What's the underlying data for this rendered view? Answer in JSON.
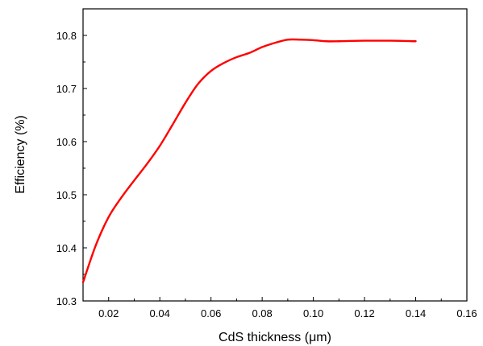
{
  "chart_data": {
    "type": "line",
    "title": "",
    "xlabel": "CdS thickness (μm)",
    "ylabel": "Efficiency (%)",
    "xlim": [
      0.01,
      0.16
    ],
    "ylim": [
      10.3,
      10.85
    ],
    "x_ticks": [
      "0.02",
      "0.04",
      "0.06",
      "0.08",
      "0.10",
      "0.12",
      "0.14",
      "0.16"
    ],
    "y_ticks": [
      "10.3",
      "10.4",
      "10.5",
      "10.6",
      "10.7",
      "10.8"
    ],
    "grid": false,
    "legend": "none",
    "series": [
      {
        "color": "#ff0000",
        "x": [
          0.01,
          0.015,
          0.02,
          0.025,
          0.03,
          0.035,
          0.04,
          0.045,
          0.05,
          0.055,
          0.06,
          0.065,
          0.07,
          0.075,
          0.08,
          0.085,
          0.09,
          0.095,
          0.1,
          0.105,
          0.11,
          0.12,
          0.13,
          0.14
        ],
        "y": [
          10.335,
          10.405,
          10.458,
          10.495,
          10.527,
          10.558,
          10.592,
          10.632,
          10.673,
          10.709,
          10.733,
          10.748,
          10.759,
          10.767,
          10.778,
          10.786,
          10.792,
          10.792,
          10.791,
          10.789,
          10.789,
          10.79,
          10.79,
          10.789
        ]
      }
    ]
  }
}
